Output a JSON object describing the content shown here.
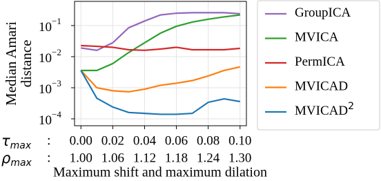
{
  "chart_data": {
    "type": "line",
    "ylabel": [
      "Median Amari",
      "distance"
    ],
    "xlabel": "Maximum shift and maximum dilation",
    "x": [
      0,
      0.01,
      0.02,
      0.03,
      0.04,
      0.05,
      0.06,
      0.07,
      0.08,
      0.09,
      0.1
    ],
    "xlim": [
      -0.004,
      0.104
    ],
    "ylim": [
      6e-05,
      0.6
    ],
    "log_y": true,
    "xticks": [
      {
        "value": 0,
        "label": "0.00"
      },
      {
        "value": 0.02,
        "label": "0.02"
      },
      {
        "value": 0.04,
        "label": "0.04"
      },
      {
        "value": 0.06,
        "label": "0.06"
      },
      {
        "value": 0.08,
        "label": "0.08"
      },
      {
        "value": 0.1,
        "label": "0.10"
      }
    ],
    "xticks_second_row": [
      {
        "value": 0,
        "label": "1.00"
      },
      {
        "value": 0.02,
        "label": "1.06"
      },
      {
        "value": 0.04,
        "label": "1.12"
      },
      {
        "value": 0.06,
        "label": "1.18"
      },
      {
        "value": 0.08,
        "label": "1.24"
      },
      {
        "value": 0.1,
        "label": "1.30"
      }
    ],
    "x_row_labels": [
      {
        "symbol": "τ",
        "subscript": "max",
        "suffix": ":"
      },
      {
        "symbol": "ρ",
        "subscript": "max",
        "suffix": ":"
      }
    ],
    "yticks": [
      {
        "value": 0.0001,
        "label": "10",
        "exponent": "−4"
      },
      {
        "value": 0.001,
        "label": "10",
        "exponent": "−3"
      },
      {
        "value": 0.01,
        "label": "10",
        "exponent": "−2"
      },
      {
        "value": 0.1,
        "label": "10",
        "exponent": "−1"
      }
    ],
    "grid": true,
    "legend": "outside-right",
    "series": [
      {
        "name": "GroupICA",
        "color": "#9467bd",
        "values": [
          0.019,
          0.016,
          0.028,
          0.085,
          0.14,
          0.22,
          0.25,
          0.26,
          0.26,
          0.26,
          0.24
        ]
      },
      {
        "name": "MVICA",
        "color": "#2ca02c",
        "values": [
          0.0036,
          0.0036,
          0.006,
          0.0136,
          0.028,
          0.057,
          0.095,
          0.13,
          0.16,
          0.19,
          0.22
        ]
      },
      {
        "name": "PermICA",
        "color": "#d62728",
        "values": [
          0.0227,
          0.0215,
          0.02,
          0.0167,
          0.016,
          0.0176,
          0.02,
          0.0167,
          0.0167,
          0.0167,
          0.0185
        ]
      },
      {
        "name": "MVICAD",
        "color": "#ff7f0e",
        "values": [
          0.0036,
          0.001,
          0.0008,
          0.00074,
          0.0009,
          0.0012,
          0.0014,
          0.0017,
          0.0024,
          0.0036,
          0.0047
        ]
      },
      {
        "name": "MVICAD",
        "name_superscript": "2",
        "color": "#1f77b4",
        "values": [
          0.0036,
          0.00046,
          0.00024,
          0.00016,
          0.00015,
          0.00014,
          0.00014,
          0.00015,
          0.00034,
          0.00044,
          0.00036
        ]
      }
    ]
  }
}
